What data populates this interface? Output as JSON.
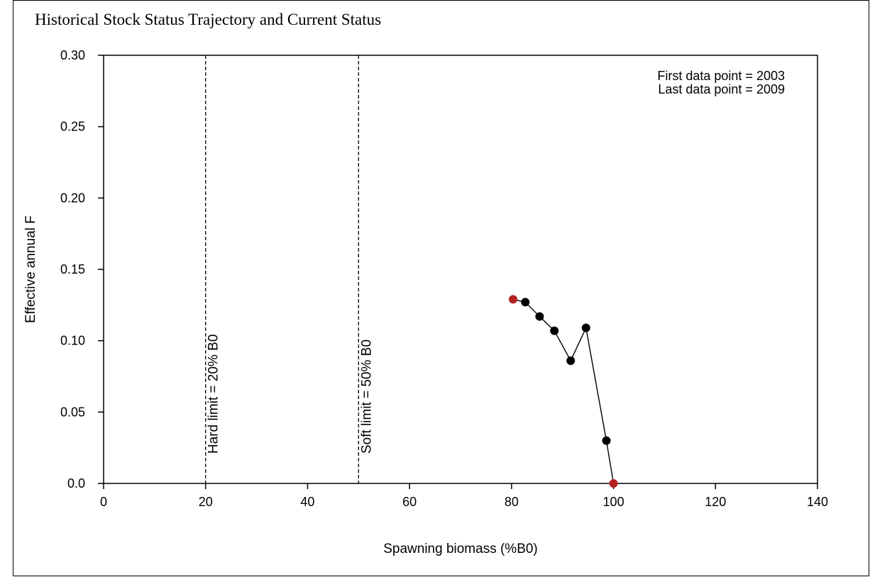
{
  "chart_data": {
    "type": "scatter",
    "title": "Historical Stock Status Trajectory and Current Status",
    "xlabel": "Spawning biomass (%B0)",
    "ylabel": "Effective annual F",
    "xlim": [
      0,
      140
    ],
    "ylim": [
      0,
      0.3
    ],
    "x_ticks": [
      "0",
      "20",
      "40",
      "60",
      "80",
      "100",
      "120",
      "140"
    ],
    "y_ticks": [
      "0.0",
      "0.05",
      "0.10",
      "0.15",
      "0.20",
      "0.25",
      "0.30"
    ],
    "grid": false,
    "series": [
      {
        "x": [
          80.3,
          82.7,
          85.5,
          88.4,
          91.6,
          94.6,
          98.6,
          100.0
        ],
        "y": [
          0.129,
          0.127,
          0.117,
          0.107,
          0.086,
          0.109,
          0.03,
          0.0
        ],
        "first_color": "#b22222",
        "last_color": "#b22222",
        "point_color": "#000000"
      }
    ],
    "reference_lines": [
      {
        "x": 20,
        "label": "Hard limit = 20% B0"
      },
      {
        "x": 50,
        "label": "Soft limit = 50% B0"
      }
    ],
    "annotations": [
      "First data point = 2003",
      "Last data point = 2009"
    ]
  }
}
